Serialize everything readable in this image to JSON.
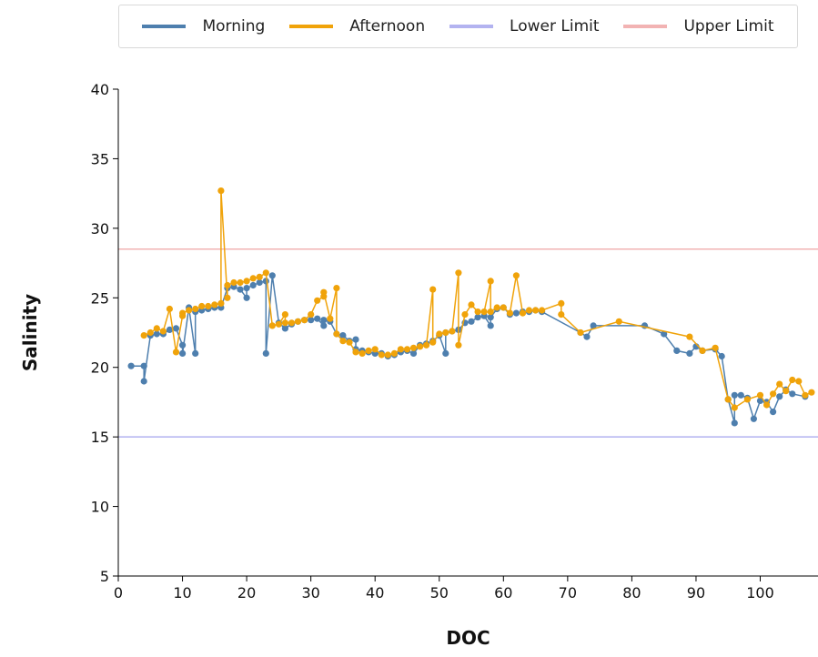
{
  "chart_data": {
    "type": "line",
    "xlabel": "DOC",
    "ylabel": "Salinity",
    "xlim": [
      0,
      109
    ],
    "ylim": [
      5,
      40
    ],
    "x_ticks": [
      0,
      10,
      20,
      30,
      40,
      50,
      60,
      70,
      80,
      90,
      100
    ],
    "y_ticks": [
      5,
      10,
      15,
      20,
      25,
      30,
      35,
      40
    ],
    "legend_position": "top",
    "reference_lines": [
      {
        "name": "Lower Limit",
        "y": 15,
        "color": "#b3b3f0"
      },
      {
        "name": "Upper Limit",
        "y": 28.5,
        "color": "#f2b3b3"
      }
    ],
    "series": [
      {
        "name": "Morning",
        "color": "#4e7fae",
        "points": [
          [
            2,
            20.1
          ],
          [
            4,
            20.1
          ],
          [
            4,
            19
          ],
          [
            5,
            22.3
          ],
          [
            6,
            22.4
          ],
          [
            7,
            22.4
          ],
          [
            8,
            22.7
          ],
          [
            9,
            22.8
          ],
          [
            10,
            21.6
          ],
          [
            10,
            21
          ],
          [
            11,
            24.3
          ],
          [
            12,
            21
          ],
          [
            12,
            24
          ],
          [
            13,
            24.1
          ],
          [
            14,
            24.2
          ],
          [
            15,
            24.3
          ],
          [
            16,
            24.3
          ],
          [
            17,
            25.7
          ],
          [
            18,
            25.8
          ],
          [
            19,
            25.6
          ],
          [
            20,
            25
          ],
          [
            20,
            25.7
          ],
          [
            21,
            25.9
          ],
          [
            22,
            26.1
          ],
          [
            23,
            26.2
          ],
          [
            23,
            21
          ],
          [
            24,
            26.6
          ],
          [
            25,
            23.2
          ],
          [
            26,
            22.8
          ],
          [
            27,
            23.1
          ],
          [
            28,
            23.3
          ],
          [
            29,
            23.4
          ],
          [
            30,
            23.4
          ],
          [
            31,
            23.5
          ],
          [
            32,
            23
          ],
          [
            32,
            23.4
          ],
          [
            33,
            23.3
          ],
          [
            34,
            22.4
          ],
          [
            35,
            22.3
          ],
          [
            36,
            21.9
          ],
          [
            37,
            22
          ],
          [
            37,
            21.3
          ],
          [
            38,
            21.2
          ],
          [
            39,
            21.1
          ],
          [
            40,
            21
          ],
          [
            41,
            21
          ],
          [
            42,
            20.8
          ],
          [
            43,
            20.9
          ],
          [
            44,
            21.1
          ],
          [
            45,
            21.2
          ],
          [
            46,
            21
          ],
          [
            47,
            21.6
          ],
          [
            48,
            21.7
          ],
          [
            49,
            21.9
          ],
          [
            50,
            22.3
          ],
          [
            51,
            21
          ],
          [
            51,
            22.5
          ],
          [
            52,
            22.6
          ],
          [
            53,
            22.7
          ],
          [
            54,
            23.2
          ],
          [
            55,
            23.3
          ],
          [
            56,
            23.6
          ],
          [
            57,
            23.7
          ],
          [
            58,
            23
          ],
          [
            58,
            23.6
          ],
          [
            59,
            24.2
          ],
          [
            60,
            24.3
          ],
          [
            61,
            23.8
          ],
          [
            62,
            23.9
          ],
          [
            63,
            24
          ],
          [
            64,
            24
          ],
          [
            65,
            24.1
          ],
          [
            66,
            24
          ],
          [
            72,
            22.5
          ],
          [
            73,
            22.2
          ],
          [
            74,
            23
          ],
          [
            82,
            23
          ],
          [
            85,
            22.4
          ],
          [
            87,
            21.2
          ],
          [
            89,
            21
          ],
          [
            90,
            21.5
          ],
          [
            91,
            21.2
          ],
          [
            93,
            21.3
          ],
          [
            94,
            20.8
          ],
          [
            95,
            17.7
          ],
          [
            96,
            16
          ],
          [
            96,
            18
          ],
          [
            97,
            18
          ],
          [
            98,
            17.8
          ],
          [
            99,
            16.3
          ],
          [
            100,
            17.6
          ],
          [
            101,
            17.5
          ],
          [
            102,
            16.8
          ],
          [
            103,
            17.9
          ],
          [
            104,
            18.4
          ],
          [
            105,
            18.1
          ],
          [
            107,
            17.9
          ]
        ]
      },
      {
        "name": "Afternoon",
        "color": "#f0a30a",
        "points": [
          [
            4,
            22.3
          ],
          [
            5,
            22.5
          ],
          [
            6,
            22.8
          ],
          [
            7,
            22.6
          ],
          [
            8,
            24.2
          ],
          [
            9,
            21.1
          ],
          [
            10,
            23.7
          ],
          [
            10,
            23.9
          ],
          [
            11,
            24.1
          ],
          [
            12,
            24.2
          ],
          [
            13,
            24.4
          ],
          [
            14,
            24.4
          ],
          [
            15,
            24.5
          ],
          [
            16,
            24.6
          ],
          [
            16,
            32.7
          ],
          [
            17,
            25
          ],
          [
            17,
            25.9
          ],
          [
            18,
            26.1
          ],
          [
            19,
            26.1
          ],
          [
            20,
            26.2
          ],
          [
            21,
            26.4
          ],
          [
            22,
            26.5
          ],
          [
            23,
            26.8
          ],
          [
            24,
            23
          ],
          [
            25,
            23.1
          ],
          [
            26,
            23.8
          ],
          [
            26,
            23.2
          ],
          [
            27,
            23.2
          ],
          [
            28,
            23.3
          ],
          [
            29,
            23.4
          ],
          [
            30,
            23.8
          ],
          [
            31,
            24.8
          ],
          [
            32,
            25.1
          ],
          [
            32,
            25.4
          ],
          [
            33,
            23.5
          ],
          [
            34,
            25.7
          ],
          [
            34,
            22.4
          ],
          [
            35,
            21.9
          ],
          [
            36,
            21.8
          ],
          [
            37,
            21.1
          ],
          [
            38,
            21
          ],
          [
            39,
            21.2
          ],
          [
            40,
            21.3
          ],
          [
            41,
            20.9
          ],
          [
            42,
            20.9
          ],
          [
            43,
            21
          ],
          [
            44,
            21.3
          ],
          [
            45,
            21.3
          ],
          [
            46,
            21.4
          ],
          [
            47,
            21.5
          ],
          [
            48,
            21.6
          ],
          [
            49,
            25.6
          ],
          [
            49,
            21.8
          ],
          [
            50,
            22.4
          ],
          [
            51,
            22.5
          ],
          [
            52,
            22.6
          ],
          [
            53,
            26.8
          ],
          [
            53,
            21.6
          ],
          [
            54,
            23.8
          ],
          [
            55,
            24.5
          ],
          [
            56,
            24
          ],
          [
            57,
            24
          ],
          [
            58,
            26.2
          ],
          [
            58,
            24
          ],
          [
            59,
            24.3
          ],
          [
            60,
            24.3
          ],
          [
            61,
            23.9
          ],
          [
            62,
            26.6
          ],
          [
            63,
            23.9
          ],
          [
            64,
            24.1
          ],
          [
            65,
            24.1
          ],
          [
            66,
            24.1
          ],
          [
            69,
            24.6
          ],
          [
            69,
            23.8
          ],
          [
            72,
            22.5
          ],
          [
            78,
            23.3
          ],
          [
            89,
            22.2
          ],
          [
            91,
            21.2
          ],
          [
            93,
            21.4
          ],
          [
            95,
            17.7
          ],
          [
            96,
            17.1
          ],
          [
            98,
            17.7
          ],
          [
            100,
            18
          ],
          [
            101,
            17.3
          ],
          [
            102,
            18.1
          ],
          [
            103,
            18.8
          ],
          [
            104,
            18.3
          ],
          [
            105,
            19.1
          ],
          [
            106,
            19
          ],
          [
            107,
            18
          ],
          [
            108,
            18.2
          ]
        ]
      }
    ]
  },
  "legend": [
    {
      "label": "Morning",
      "color": "#4e7fae"
    },
    {
      "label": "Afternoon",
      "color": "#f0a30a"
    },
    {
      "label": "Lower Limit",
      "color": "#b3b3f0"
    },
    {
      "label": "Upper Limit",
      "color": "#f2b3b3"
    }
  ]
}
